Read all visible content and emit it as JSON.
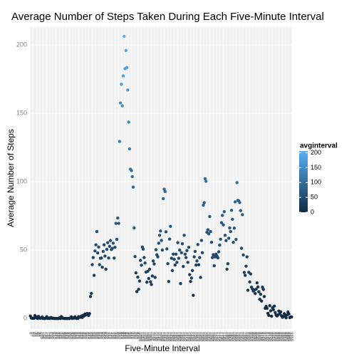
{
  "chart_data": {
    "type": "scatter",
    "title": "Average Number of Steps Taken During Each Five-Minute Interval",
    "x_label": "Five-Minute Interval",
    "y_label": "Average Number of Steps",
    "categories": [
      0,
      5,
      10,
      15,
      20,
      25,
      30,
      35,
      40,
      45,
      50,
      55,
      100,
      105,
      110,
      115,
      120,
      125,
      130,
      135,
      140,
      145,
      150,
      155,
      200,
      205,
      210,
      215,
      220,
      225,
      230,
      235,
      240,
      245,
      250,
      255,
      300,
      305,
      310,
      315,
      320,
      325,
      330,
      335,
      340,
      345,
      350,
      355,
      400,
      405,
      410,
      415,
      420,
      425,
      430,
      435,
      440,
      445,
      450,
      455,
      500,
      505,
      510,
      515,
      520,
      525,
      530,
      535,
      540,
      545,
      550,
      555,
      600,
      605,
      610,
      615,
      620,
      625,
      630,
      635,
      640,
      645,
      650,
      655,
      700,
      705,
      710,
      715,
      720,
      725,
      730,
      735,
      740,
      745,
      750,
      755,
      800,
      805,
      810,
      815,
      820,
      825,
      830,
      835,
      840,
      845,
      850,
      855,
      900,
      905,
      910,
      915,
      920,
      925,
      930,
      935,
      940,
      945,
      950,
      955,
      1000,
      1005,
      1010,
      1015,
      1020,
      1025,
      1030,
      1035,
      1040,
      1045,
      1050,
      1055,
      1100,
      1105,
      1110,
      1115,
      1120,
      1125,
      1130,
      1135,
      1140,
      1145,
      1150,
      1155,
      1200,
      1205,
      1210,
      1215,
      1220,
      1225,
      1230,
      1235,
      1240,
      1245,
      1250,
      1255,
      1300,
      1305,
      1310,
      1315,
      1320,
      1325,
      1330,
      1335,
      1340,
      1345,
      1350,
      1355,
      1400,
      1405,
      1410,
      1415,
      1420,
      1425,
      1430,
      1435,
      1440,
      1445,
      1450,
      1455,
      1500,
      1505,
      1510,
      1515,
      1520,
      1525,
      1530,
      1535,
      1540,
      1545,
      1550,
      1555,
      1600,
      1605,
      1610,
      1615,
      1620,
      1625,
      1630,
      1635,
      1640,
      1645,
      1650,
      1655,
      1700,
      1705,
      1710,
      1715,
      1720,
      1725,
      1730,
      1735,
      1740,
      1745,
      1750,
      1755,
      1800,
      1805,
      1810,
      1815,
      1820,
      1825,
      1830,
      1835,
      1840,
      1845,
      1850,
      1855,
      1900,
      1905,
      1910,
      1915,
      1920,
      1925,
      1930,
      1935,
      1940,
      1945,
      1950,
      1955,
      2000,
      2005,
      2010,
      2015,
      2020,
      2025,
      2030,
      2035,
      2040,
      2045,
      2050,
      2055,
      2100,
      2105,
      2110,
      2115,
      2120,
      2125,
      2130,
      2135,
      2140,
      2145,
      2150,
      2155,
      2200,
      2205,
      2210,
      2215,
      2220,
      2225,
      2230,
      2235,
      2240,
      2245,
      2250,
      2255,
      2300,
      2305,
      2310,
      2315,
      2320,
      2325,
      2330,
      2335,
      2340,
      2345,
      2350,
      2355
    ],
    "values": [
      1.72,
      0.34,
      0.13,
      0.15,
      0.08,
      2.09,
      0.53,
      0.87,
      0,
      1.47,
      0.3,
      0.13,
      0.32,
      1.11,
      0,
      0,
      0,
      0.21,
      1.19,
      0.06,
      0.26,
      0,
      0.51,
      0.6,
      0,
      0.2,
      0,
      0,
      0,
      0,
      0,
      0,
      0.46,
      0,
      1.3,
      0.3,
      0.13,
      0,
      0,
      0,
      0,
      0,
      0,
      0,
      0.35,
      1.13,
      0,
      0.38,
      0.25,
      1.16,
      0.3,
      0,
      0,
      1.3,
      0.8,
      0.9,
      1.7,
      0.7,
      2.3,
      1.8,
      3.2,
      2.5,
      3.5,
      3.4,
      2.2,
      3.5,
      16.0,
      18.3,
      39.3,
      44.5,
      31.5,
      49.3,
      53.8,
      63.5,
      47.8,
      52.2,
      39.3,
      44.0,
      44.2,
      37.4,
      49.0,
      53.8,
      45.6,
      36,
      50.5,
      55.4,
      44.2,
      52.7,
      56.9,
      50.4,
      51.2,
      55,
      44.1,
      52,
      69.5,
      57.8,
      73.4,
      69.5,
      129.4,
      157.5,
      171.2,
      155.4,
      177.3,
      206.2,
      182.6,
      195.9,
      183.4,
      167.0,
      143.5,
      124.0,
      109.1,
      108.1,
      103.7,
      95.97,
      66.2,
      45.2,
      33.3,
      19.6,
      30.2,
      21.3,
      27.3,
      42.4,
      38.9,
      52.2,
      50.6,
      44.5,
      40.5,
      33.9,
      26.5,
      34.4,
      29.2,
      36.0,
      26.8,
      24.8,
      31,
      42.0,
      39.8,
      30,
      50.2,
      46.5,
      45,
      55,
      60.8,
      63.9,
      57,
      50,
      87.6,
      94.5,
      92.8,
      63.3,
      50.8,
      40,
      27,
      58,
      67.3,
      44,
      35,
      47,
      43.2,
      39,
      47,
      41,
      55.4,
      44,
      50,
      25.5,
      48,
      54.6,
      38,
      60.8,
      47,
      44.5,
      49.6,
      41,
      52,
      32,
      27,
      29.5,
      35,
      16.9,
      45,
      49,
      39,
      42,
      54,
      39.2,
      44.5,
      30,
      57,
      48,
      82.8,
      84.6,
      102.1,
      100.3,
      62.9,
      64.8,
      61.8,
      74.5,
      63.5,
      55.7,
      44.5,
      46.6,
      38.5,
      45,
      47,
      45.7,
      44.3,
      48.7,
      53.6,
      57.9,
      70,
      75.3,
      68.4,
      78,
      60.8,
      56.9,
      36,
      40,
      58.6,
      66.2,
      63.5,
      79,
      72.5,
      55.6,
      66,
      85.2,
      57.7,
      99.3,
      86.3,
      85.9,
      84.7,
      78.8,
      51.3,
      75.8,
      46.4,
      33.6,
      31.5,
      38.2,
      45,
      20.6,
      33.7,
      26.7,
      32.5,
      22.8,
      21.5,
      20,
      20.7,
      18.2,
      21.4,
      26,
      23,
      19.5,
      14,
      17.7,
      12.7,
      22.8,
      21.2,
      16,
      7.4,
      8.8,
      7.4,
      3.7,
      2.2,
      9.3,
      5.6,
      1.6,
      7.8,
      6.4,
      9,
      4.3,
      2.5,
      1.8,
      2.5,
      5.4,
      3.4,
      4.8,
      1.9,
      0.8,
      1.4,
      3.4,
      2.2,
      0.5,
      2.6,
      4.7,
      3.3,
      0.6,
      1.1,
      1.1
    ],
    "ylim": [
      -7.8,
      213
    ],
    "yticks": [
      0,
      50,
      100,
      150,
      200
    ],
    "grid": true,
    "legend": {
      "title": "avginterval",
      "ticks": [
        0,
        50,
        100,
        150,
        200
      ],
      "range": [
        0,
        206.2
      ],
      "colors": [
        "#132B43",
        "#56B1F7"
      ],
      "position": "right"
    }
  }
}
